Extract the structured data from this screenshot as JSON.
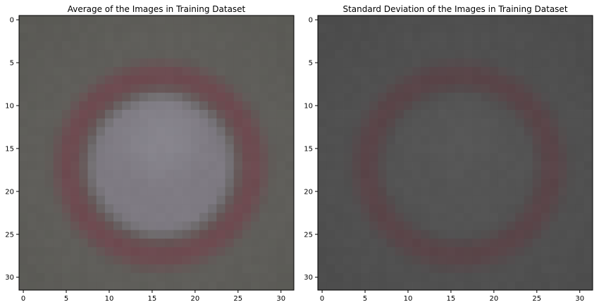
{
  "chart_data": [
    {
      "type": "heatmap",
      "title": "Average of the Images in Training Dataset",
      "xlim": [
        -0.5,
        31.5
      ],
      "ylim": [
        31.5,
        -0.5
      ],
      "xticks": [
        0,
        5,
        10,
        15,
        20,
        25,
        30
      ],
      "yticks": [
        0,
        5,
        10,
        15,
        20,
        25,
        30
      ],
      "grid": false,
      "image": {
        "width": 32,
        "height": 32,
        "background_color": "#5f5e5a",
        "corner_color": "#585853",
        "ring_color": "#6e4a50",
        "ring_center": [
          16,
          17
        ],
        "ring_outer_radius": 12,
        "ring_inner_radius": 9.5,
        "interior_color": "#7e7a82",
        "interior_highlight_color": "#8a8890"
      }
    },
    {
      "type": "heatmap",
      "title": "Standard Deviation of the Images in Training Dataset",
      "xlim": [
        -0.5,
        31.5
      ],
      "ylim": [
        31.5,
        -0.5
      ],
      "xticks": [
        0,
        5,
        10,
        15,
        20,
        25,
        30
      ],
      "yticks": [
        0,
        5,
        10,
        15,
        20,
        25,
        30
      ],
      "grid": false,
      "image": {
        "width": 32,
        "height": 32,
        "background_color": "#505050",
        "corner_color": "#4a4a4a",
        "ring_color": "#5a4448",
        "ring_center": [
          16,
          17
        ],
        "ring_outer_radius": 12,
        "ring_inner_radius": 9.5,
        "interior_color": "#545454",
        "interior_highlight_color": "#585858"
      }
    }
  ]
}
